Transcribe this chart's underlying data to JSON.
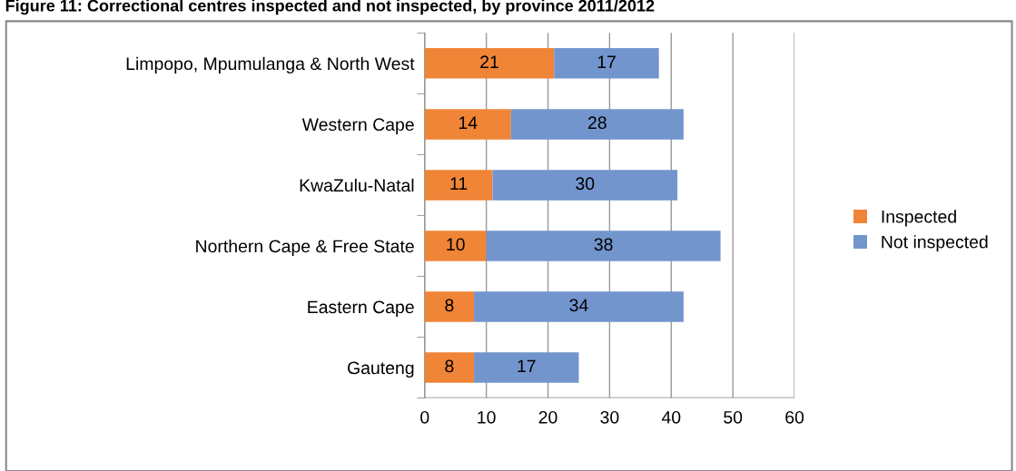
{
  "chart_data": {
    "type": "bar",
    "orientation": "horizontal",
    "stacked": true,
    "title": "Figure 11: Correctional centres inspected and not inspected, by province 2011/2012",
    "categories": [
      "Limpopo, Mpumulanga & North West",
      "Western Cape",
      "KwaZulu-Natal",
      "Northern Cape & Free State",
      "Eastern Cape",
      "Gauteng"
    ],
    "series": [
      {
        "name": "Inspected",
        "color": "#f08437",
        "values": [
          21,
          14,
          11,
          10,
          8,
          8
        ]
      },
      {
        "name": "Not inspected",
        "color": "#7295cd",
        "values": [
          17,
          28,
          30,
          38,
          34,
          17
        ]
      }
    ],
    "xlim": [
      0,
      60
    ],
    "xticks": [
      0,
      10,
      20,
      30,
      40,
      50,
      60
    ],
    "grid": "x",
    "legend": "right",
    "data_labels": true
  }
}
